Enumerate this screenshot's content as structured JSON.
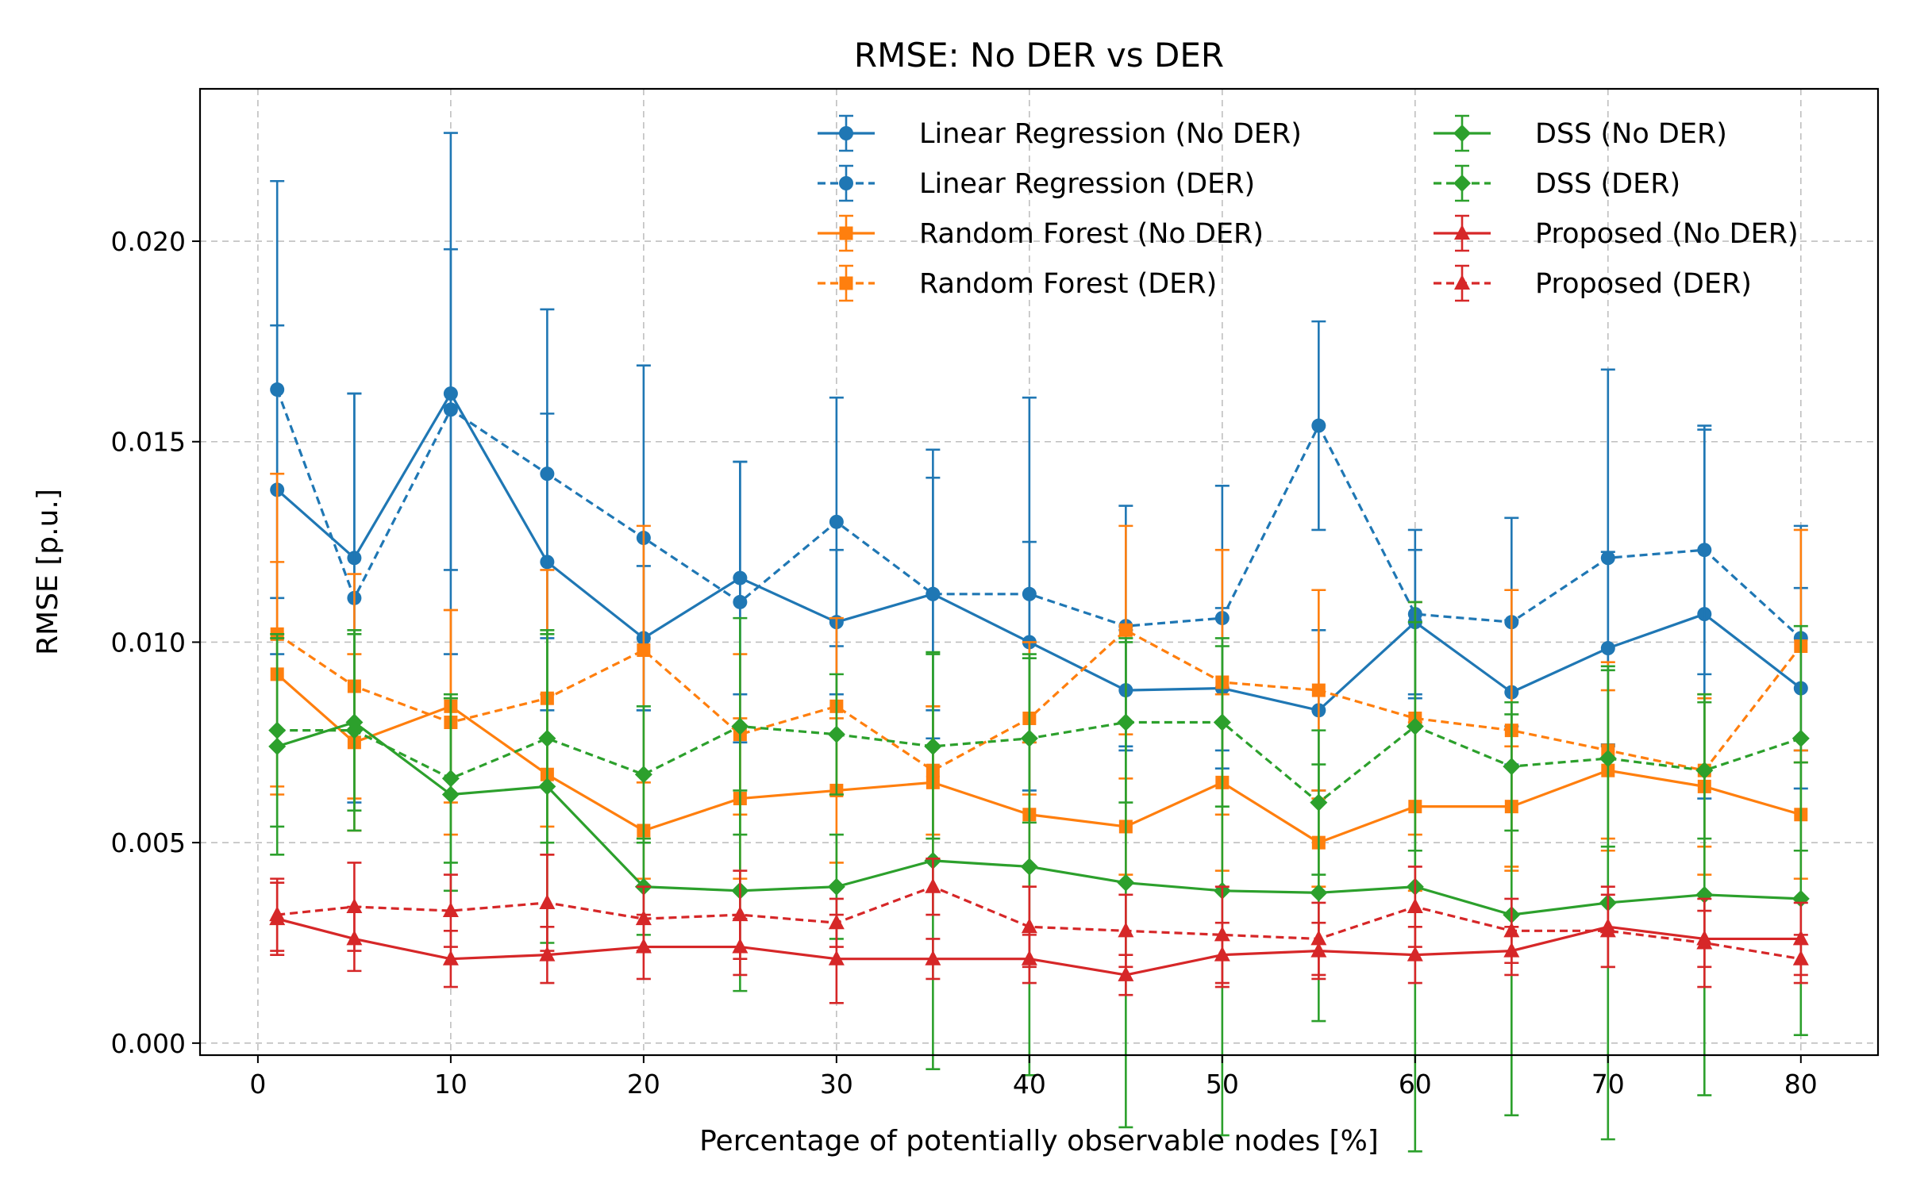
{
  "chart_data": {
    "type": "line",
    "title": "RMSE: No DER vs DER",
    "xlabel": "Percentage of potentially observable nodes [%]",
    "ylabel": "RMSE [p.u.]",
    "xlim": [
      -3,
      84
    ],
    "ylim": [
      -0.0003,
      0.0238
    ],
    "xticks": [
      0,
      10,
      20,
      30,
      40,
      50,
      60,
      70,
      80
    ],
    "xtick_labels": [
      "0",
      "10",
      "20",
      "30",
      "40",
      "50",
      "60",
      "70",
      "80"
    ],
    "yticks": [
      0.0,
      0.005,
      0.01,
      0.015,
      0.02
    ],
    "ytick_labels": [
      "0.000",
      "0.005",
      "0.010",
      "0.015",
      "0.020"
    ],
    "grid": true,
    "legend_position": "top-right",
    "x": [
      1,
      5,
      10,
      15,
      20,
      25,
      30,
      35,
      40,
      45,
      50,
      55,
      60,
      65,
      70,
      75,
      80
    ],
    "series": [
      {
        "name": "Linear Regression (No DER)",
        "color": "#1f77b4",
        "linestyle": "solid",
        "marker": "circle",
        "values": [
          0.0138,
          0.0121,
          0.0162,
          0.012,
          0.0101,
          0.0116,
          0.0105,
          0.0112,
          0.01,
          0.0088,
          0.00885,
          0.0083,
          0.0105,
          0.00875,
          0.00985,
          0.0107,
          0.00885
        ],
        "err": [
          0.0041,
          0.0041,
          0.0065,
          0.0037,
          0.0018,
          0.0029,
          0.0018,
          0.0029,
          0.0025,
          0.0015,
          0.002,
          0.002,
          0.0018,
          0.0018,
          0.0024,
          0.0046,
          0.0025
        ]
      },
      {
        "name": "Linear Regression (DER)",
        "color": "#1f77b4",
        "linestyle": "dashed",
        "marker": "circle",
        "values": [
          0.0163,
          0.0111,
          0.0158,
          0.0142,
          0.0126,
          0.011,
          0.013,
          0.0112,
          0.0112,
          0.0104,
          0.0106,
          0.0154,
          0.0107,
          0.0105,
          0.0121,
          0.0123,
          0.0101
        ],
        "err": [
          0.0052,
          0.0051,
          0.004,
          0.0041,
          0.0043,
          0.0035,
          0.0031,
          0.0036,
          0.0049,
          0.003,
          0.0033,
          0.0026,
          0.0021,
          0.0026,
          0.0047,
          0.0031,
          0.0028
        ]
      },
      {
        "name": "Random Forest (No DER)",
        "color": "#ff7f0e",
        "linestyle": "solid",
        "marker": "square",
        "values": [
          0.0092,
          0.0075,
          0.0084,
          0.0067,
          0.0053,
          0.0061,
          0.0063,
          0.0065,
          0.0057,
          0.0054,
          0.0065,
          0.005,
          0.0059,
          0.0059,
          0.0068,
          0.0064,
          0.0057
        ],
        "err": [
          0.0028,
          0.0022,
          0.0024,
          0.002,
          0.0012,
          0.002,
          0.0018,
          0.0019,
          0.0018,
          0.0012,
          0.0022,
          0.0011,
          0.0021,
          0.0015,
          0.002,
          0.0022,
          0.0016
        ]
      },
      {
        "name": "Random Forest (DER)",
        "color": "#ff7f0e",
        "linestyle": "dashed",
        "marker": "square",
        "values": [
          0.0102,
          0.0089,
          0.008,
          0.0086,
          0.0098,
          0.0077,
          0.0084,
          0.0068,
          0.0081,
          0.0103,
          0.009,
          0.0088,
          0.0081,
          0.0078,
          0.0073,
          0.0068,
          0.0099
        ],
        "err": [
          0.004,
          0.0028,
          0.0028,
          0.0032,
          0.0031,
          0.002,
          0.0022,
          0.0016,
          0.0019,
          0.0026,
          0.0033,
          0.0025,
          0.0029,
          0.0035,
          0.0022,
          0.0019,
          0.0029
        ]
      },
      {
        "name": "DSS (No DER)",
        "color": "#2ca02c",
        "linestyle": "solid",
        "marker": "diamond",
        "values": [
          0.0074,
          0.008,
          0.0062,
          0.0064,
          0.0039,
          0.0038,
          0.0039,
          0.00455,
          0.0044,
          0.004,
          0.0038,
          0.00375,
          0.0039,
          0.0032,
          0.0035,
          0.0037,
          0.0036
        ],
        "err": [
          0.0027,
          0.0022,
          0.0024,
          0.0039,
          0.0012,
          0.0025,
          0.0013,
          0.0052,
          0.0052,
          0.0061,
          0.0061,
          0.0032,
          0.0066,
          0.005,
          0.0059,
          0.005,
          0.0034
        ]
      },
      {
        "name": "DSS (DER)",
        "color": "#2ca02c",
        "linestyle": "dashed",
        "marker": "diamond",
        "values": [
          0.0078,
          0.0078,
          0.0066,
          0.0076,
          0.0067,
          0.0079,
          0.0077,
          0.0074,
          0.0076,
          0.008,
          0.008,
          0.006,
          0.0079,
          0.0069,
          0.0071,
          0.0068,
          0.0076
        ],
        "err": [
          0.0024,
          0.0025,
          0.0021,
          0.0026,
          0.0017,
          0.0027,
          0.0015,
          0.0023,
          0.0021,
          0.002,
          0.0021,
          0.0018,
          0.0031,
          0.0016,
          0.0022,
          0.0017,
          0.0028
        ]
      },
      {
        "name": "Proposed (No DER)",
        "color": "#d62728",
        "linestyle": "solid",
        "marker": "triangle",
        "values": [
          0.0031,
          0.0026,
          0.0021,
          0.0022,
          0.0024,
          0.0024,
          0.0021,
          0.0021,
          0.0021,
          0.0017,
          0.0022,
          0.0023,
          0.0022,
          0.0023,
          0.0029,
          0.0026,
          0.0026
        ],
        "err": [
          0.0009,
          0.0008,
          0.0007,
          0.0007,
          0.0008,
          0.0007,
          0.0011,
          0.0005,
          0.0006,
          0.0005,
          0.0008,
          0.0007,
          0.0007,
          0.0006,
          0.001,
          0.0007,
          0.0009
        ]
      },
      {
        "name": "Proposed (DER)",
        "color": "#d62728",
        "linestyle": "dashed",
        "marker": "triangle",
        "values": [
          0.0032,
          0.0034,
          0.0033,
          0.0035,
          0.0031,
          0.0032,
          0.003,
          0.0039,
          0.0029,
          0.0028,
          0.0027,
          0.0026,
          0.0034,
          0.0028,
          0.0028,
          0.0025,
          0.0021
        ],
        "err": [
          0.0009,
          0.0011,
          0.0009,
          0.0012,
          0.0008,
          0.0011,
          0.0006,
          0.0007,
          0.001,
          0.0009,
          0.0012,
          0.0009,
          0.001,
          0.0008,
          0.0009,
          0.0011,
          0.0006
        ]
      }
    ]
  }
}
